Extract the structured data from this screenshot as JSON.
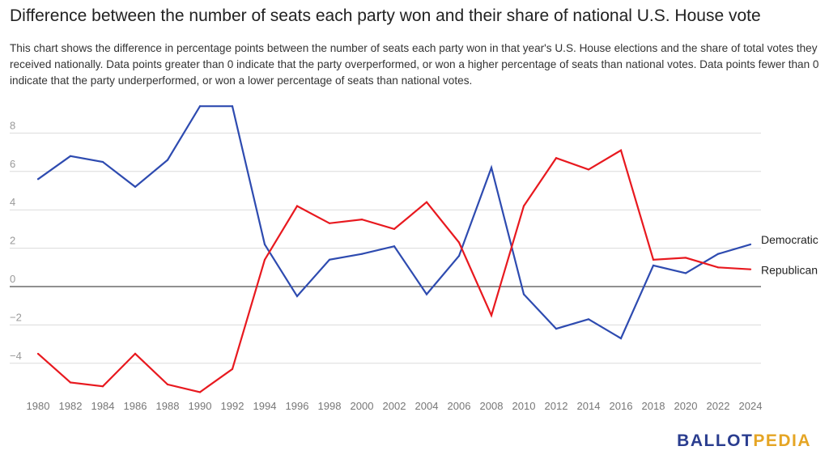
{
  "title": "Difference between the number of seats each party won and their share of national U.S. House vote",
  "subtitle": "This chart shows the difference in percentage points between the number of seats each party won in that year's U.S. House elections and the share of total votes they received nationally. Data points greater than 0 indicate that the party overperformed, or won a higher percentage of seats than national votes. Data points fewer than 0 indicate that the party underperformed, or won a lower percentage of seats than national votes.",
  "logo": {
    "part1": "BALLOT",
    "part2": "PEDIA"
  },
  "colors": {
    "democratic": "#2e4bb0",
    "republican": "#e8191f",
    "grid": "#dcdcdc",
    "zero": "#222222",
    "tick": "#999999",
    "logo_primary": "#2a3d8f",
    "logo_accent": "#e5a524"
  },
  "chart_data": {
    "type": "line",
    "title": "Difference between the number of seats each party won and their share of national U.S. House vote",
    "xlabel": "",
    "ylabel": "",
    "ylim": [
      -6,
      9.5
    ],
    "yticks": [
      -4,
      -2,
      0,
      2,
      4,
      6,
      8
    ],
    "ytick_labels": [
      "−4",
      "−2",
      "0",
      "2",
      "4",
      "6",
      "8"
    ],
    "grid": true,
    "legend": "direct labels at line ends",
    "x": [
      "1980",
      "1982",
      "1984",
      "1986",
      "1988",
      "1990",
      "1992",
      "1994",
      "1996",
      "1998",
      "2000",
      "2002",
      "2004",
      "2006",
      "2008",
      "2010",
      "2012",
      "2014",
      "2016",
      "2018",
      "2020",
      "2022",
      "2024"
    ],
    "series": [
      {
        "name": "Democratic",
        "color": "#2e4bb0",
        "values": [
          5.6,
          6.8,
          6.5,
          5.2,
          6.6,
          9.4,
          9.4,
          2.2,
          -0.5,
          1.4,
          1.7,
          2.1,
          -0.4,
          1.6,
          6.2,
          -0.4,
          -2.2,
          -1.7,
          -2.7,
          1.1,
          0.7,
          1.7,
          2.2
        ]
      },
      {
        "name": "Republican",
        "color": "#e8191f",
        "values": [
          -3.5,
          -5.0,
          -5.2,
          -3.5,
          -5.1,
          -5.5,
          -4.3,
          1.4,
          4.2,
          3.3,
          3.5,
          3.0,
          4.4,
          2.3,
          -1.5,
          4.2,
          6.7,
          6.1,
          7.1,
          1.4,
          1.5,
          1.0,
          0.9
        ]
      }
    ]
  }
}
